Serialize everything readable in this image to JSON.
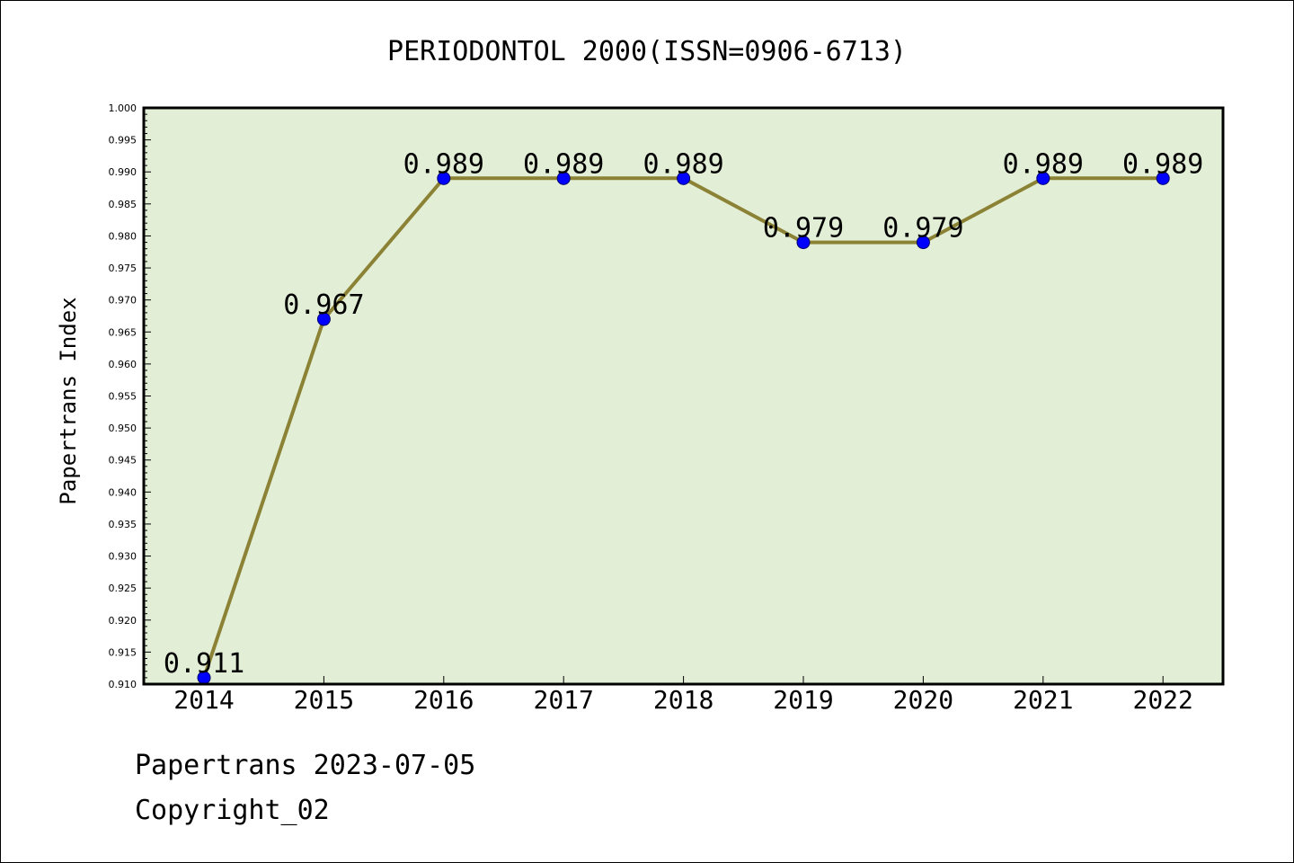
{
  "chart_data": {
    "type": "line",
    "title": "PERIODONTOL 2000(ISSN=0906-6713)",
    "xlabel": "",
    "ylabel": "Papertrans Index",
    "categories": [
      "2014",
      "2015",
      "2016",
      "2017",
      "2018",
      "2019",
      "2020",
      "2021",
      "2022"
    ],
    "series": [
      {
        "values": [
          0.911,
          0.967,
          0.989,
          0.989,
          0.989,
          0.979,
          0.979,
          0.989,
          0.989
        ]
      }
    ],
    "data_labels": [
      "0.911",
      "0.967",
      "0.989",
      "0.989",
      "0.989",
      "0.979",
      "0.979",
      "0.989",
      "0.989"
    ],
    "ylim": [
      0.91,
      1.0
    ],
    "ytick_step": 0.005,
    "ytick_labels": [
      "0.910",
      "0.915",
      "0.920",
      "0.925",
      "0.930",
      "0.935",
      "0.940",
      "0.945",
      "0.950",
      "0.955",
      "0.960",
      "0.965",
      "0.970",
      "0.975",
      "0.980",
      "0.985",
      "0.990",
      "0.995",
      "1.000"
    ],
    "grid": false,
    "legend": "none",
    "colors": {
      "plot_background": "#e2efd6",
      "line": "#8b8235",
      "marker": "#0000ff"
    }
  },
  "footer": {
    "line1": "Papertrans 2023-07-05",
    "line2": "Copyright_02"
  }
}
